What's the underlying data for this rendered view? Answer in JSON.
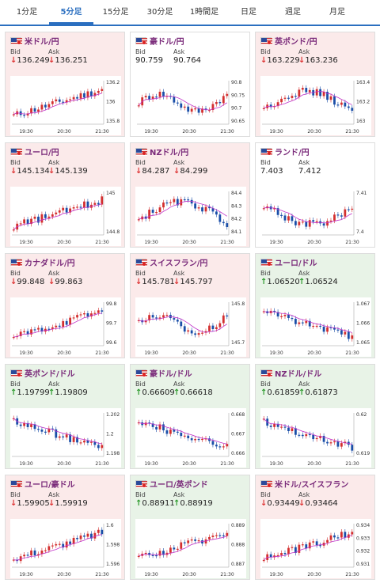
{
  "tabs": [
    "1分足",
    "5分足",
    "15分足",
    "30分足",
    "1時間足",
    "日足",
    "週足",
    "月足"
  ],
  "active_tab": 1,
  "colors": {
    "up_bg": "#e8f3e7",
    "down_bg": "#fbeaea",
    "candle_up": "#d32f2f",
    "candle_dn": "#1a4ea8",
    "ma": "#c030c8"
  },
  "cards": [
    {
      "pair": "米ドル/円",
      "flag": "us-jp",
      "trend": "down",
      "bid": "136.249",
      "ask": "136.251",
      "bid_dir": "down",
      "ask_dir": "down",
      "yticks": [
        "136.2",
        "136",
        "135.8"
      ],
      "xticks": [
        "19:30",
        "20:30",
        "21:30"
      ],
      "shape": "up"
    },
    {
      "pair": "豪ドル/円",
      "flag": "au-jp",
      "trend": "flat",
      "bid": "90.759",
      "ask": "90.764",
      "bid_dir": "",
      "ask_dir": "",
      "yticks": [
        "90.8",
        "90.75",
        "90.7",
        "90.65"
      ],
      "xticks": [
        "19:30",
        "20:30",
        "21:30"
      ],
      "shape": "wave"
    },
    {
      "pair": "英ポンド/円",
      "flag": "gb-jp",
      "trend": "down",
      "bid": "163.229",
      "ask": "163.236",
      "bid_dir": "down",
      "ask_dir": "down",
      "yticks": [
        "163.4",
        "163.2",
        "163"
      ],
      "xticks": [
        "19:30",
        "20:30",
        "21:30"
      ],
      "shape": "hump"
    },
    {
      "pair": "ユーロ/円",
      "flag": "eu-jp",
      "trend": "down",
      "bid": "145.134",
      "ask": "145.139",
      "bid_dir": "down",
      "ask_dir": "down",
      "yticks": [
        "145",
        "144.8"
      ],
      "xticks": [
        "19:30",
        "20:30",
        "21:30"
      ],
      "shape": "up"
    },
    {
      "pair": "NZドル/円",
      "flag": "nz-jp",
      "trend": "down",
      "bid": "84.287",
      "ask": "84.299",
      "bid_dir": "down",
      "ask_dir": "down",
      "yticks": [
        "84.4",
        "84.3",
        "84.2",
        "84.1"
      ],
      "xticks": [
        "19:30",
        "20:30",
        "21:30"
      ],
      "shape": "hump"
    },
    {
      "pair": "ランド/円",
      "flag": "za-jp",
      "trend": "flat",
      "bid": "7.403",
      "ask": "7.412",
      "bid_dir": "",
      "ask_dir": "",
      "yticks": [
        "7.41",
        "7.4"
      ],
      "xticks": [
        "19:30",
        "20:30",
        "21:30"
      ],
      "shape": "dip"
    },
    {
      "pair": "カナダドル/円",
      "flag": "ca-jp",
      "trend": "down",
      "bid": "99.848",
      "ask": "99.863",
      "bid_dir": "down",
      "ask_dir": "down",
      "yticks": [
        "99.8",
        "99.7",
        "99.6"
      ],
      "xticks": [
        "19:30",
        "20:30",
        "21:30"
      ],
      "shape": "up"
    },
    {
      "pair": "スイスフラン/円",
      "flag": "ch-jp",
      "trend": "down",
      "bid": "145.781",
      "ask": "145.797",
      "bid_dir": "down",
      "ask_dir": "down",
      "yticks": [
        "145.8",
        "145.7"
      ],
      "xticks": [
        "19:30",
        "20:30",
        "21:30"
      ],
      "shape": "wave"
    },
    {
      "pair": "ユーロ/ドル",
      "flag": "eu-us",
      "trend": "up",
      "bid": "1.06520",
      "ask": "1.06524",
      "bid_dir": "up",
      "ask_dir": "up",
      "yticks": [
        "1.067",
        "1.066",
        "1.065"
      ],
      "xticks": [
        "19:30",
        "20:30",
        "21:30"
      ],
      "shape": "down"
    },
    {
      "pair": "英ポンド/ドル",
      "flag": "gb-us",
      "trend": "up",
      "bid": "1.19799",
      "ask": "1.19809",
      "bid_dir": "up",
      "ask_dir": "up",
      "yticks": [
        "1.202",
        "1.2",
        "1.198"
      ],
      "xticks": [
        "19:30",
        "20:30",
        "21:30"
      ],
      "shape": "down"
    },
    {
      "pair": "豪ドル/ドル",
      "flag": "au-us",
      "trend": "up",
      "bid": "0.66609",
      "ask": "0.66618",
      "bid_dir": "up",
      "ask_dir": "up",
      "yticks": [
        "0.668",
        "0.667",
        "0.666"
      ],
      "xticks": [
        "19:30",
        "20:30",
        "21:30"
      ],
      "shape": "down"
    },
    {
      "pair": "NZドル/ドル",
      "flag": "nz-us",
      "trend": "up",
      "bid": "0.61859",
      "ask": "0.61873",
      "bid_dir": "up",
      "ask_dir": "up",
      "yticks": [
        "0.62",
        "0.619"
      ],
      "xticks": [
        "19:30",
        "20:30",
        "21:30"
      ],
      "shape": "down"
    },
    {
      "pair": "ユーロ/豪ドル",
      "flag": "eu-au",
      "trend": "down",
      "bid": "1.59905",
      "ask": "1.59919",
      "bid_dir": "down",
      "ask_dir": "down",
      "yticks": [
        "1.6",
        "1.598",
        "1.596"
      ],
      "xticks": [
        "19:30",
        "20:30",
        "21:30"
      ],
      "shape": "up"
    },
    {
      "pair": "ユーロ/英ポンド",
      "flag": "eu-gb",
      "trend": "up",
      "bid": "0.88911",
      "ask": "0.88919",
      "bid_dir": "up",
      "ask_dir": "up",
      "yticks": [
        "0.889",
        "0.888",
        "0.887"
      ],
      "xticks": [
        "19:30",
        "20:30",
        "21:30"
      ],
      "shape": "up"
    },
    {
      "pair": "米ドル/スイスフラン",
      "flag": "us-ch",
      "trend": "down",
      "bid": "0.93449",
      "ask": "0.93464",
      "bid_dir": "down",
      "ask_dir": "down",
      "yticks": [
        "0.934",
        "0.933",
        "0.932",
        "0.931"
      ],
      "xticks": [
        "19:30",
        "20:30",
        "21:30"
      ],
      "shape": "up"
    }
  ],
  "labels": {
    "bid": "Bid",
    "ask": "Ask"
  }
}
